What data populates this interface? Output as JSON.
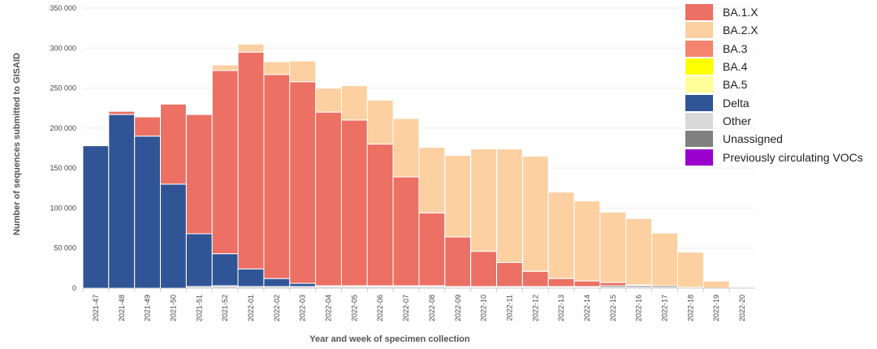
{
  "chart_data": {
    "type": "bar",
    "stacked": true,
    "xlabel": "Year and week of specimen collection",
    "ylabel": "Number of sequences submitted to GISAID",
    "ylim": [
      0,
      350000
    ],
    "yticks": [
      0,
      50000,
      100000,
      150000,
      200000,
      250000,
      300000,
      350000
    ],
    "ytick_labels": [
      "0",
      "50 000",
      "100 000",
      "150 000",
      "200 000",
      "250 000",
      "300 000",
      "350 000"
    ],
    "legend_position": "right",
    "categories": [
      "2021-47",
      "2021-48",
      "2021-49",
      "2021-50",
      "2021-51",
      "2021-52",
      "2022-01",
      "2022-02",
      "2022-03",
      "2022-04",
      "2022-05",
      "2022-06",
      "2022-07",
      "2022-08",
      "2022-09",
      "2022-10",
      "2022-11",
      "2022-12",
      "2022-13",
      "2022-14",
      "2022-15",
      "2022-16",
      "2022-17",
      "2022-18",
      "2022-19",
      "2022-20"
    ],
    "series": [
      {
        "name": "Other",
        "color": "#d9d9d9",
        "values": [
          0,
          0,
          0,
          0,
          2000,
          3000,
          2000,
          2000,
          2000,
          2000,
          2000,
          2000,
          2000,
          2000,
          1000,
          1000,
          1000,
          1000,
          1000,
          1000,
          1000,
          1000,
          1000,
          1000,
          0,
          0
        ]
      },
      {
        "name": "Unassigned",
        "color": "#808080",
        "values": [
          0,
          0,
          0,
          0,
          0,
          0,
          0,
          0,
          0,
          1000,
          1000,
          1000,
          1000,
          1000,
          1000,
          1000,
          1000,
          1000,
          1000,
          1000,
          2000,
          2000,
          2000,
          0,
          0,
          0
        ]
      },
      {
        "name": "Previously circulating VOCs",
        "color": "#9900cc",
        "values": [
          0,
          0,
          0,
          0,
          0,
          0,
          0,
          0,
          0,
          0,
          0,
          0,
          0,
          0,
          0,
          0,
          0,
          0,
          0,
          0,
          0,
          0,
          0,
          0,
          0,
          0
        ]
      },
      {
        "name": "Delta",
        "color": "#2f5597",
        "values": [
          178000,
          217000,
          190000,
          130000,
          66000,
          40000,
          22000,
          10000,
          4000,
          0,
          0,
          0,
          0,
          0,
          0,
          0,
          0,
          0,
          0,
          0,
          0,
          0,
          0,
          0,
          0,
          0
        ]
      },
      {
        "name": "BA.1.X",
        "color": "#ec7064",
        "values": [
          1000,
          4000,
          24000,
          100000,
          149000,
          229000,
          271000,
          255000,
          252000,
          217000,
          207000,
          177000,
          136000,
          91000,
          62000,
          44000,
          30000,
          19000,
          10000,
          7000,
          4000,
          1000,
          0,
          0,
          0,
          0
        ]
      },
      {
        "name": "BA.3",
        "color": "#f4846e",
        "values": [
          0,
          0,
          0,
          0,
          0,
          0,
          0,
          0,
          0,
          0,
          0,
          0,
          0,
          0,
          0,
          0,
          0,
          0,
          0,
          0,
          0,
          0,
          0,
          0,
          0,
          0
        ]
      },
      {
        "name": "BA.4",
        "color": "#ffff00",
        "values": [
          0,
          0,
          0,
          0,
          0,
          0,
          0,
          0,
          0,
          0,
          0,
          0,
          0,
          0,
          0,
          0,
          0,
          0,
          0,
          0,
          0,
          0,
          0,
          0,
          0,
          0
        ]
      },
      {
        "name": "BA.5",
        "color": "#ffff99",
        "values": [
          0,
          0,
          0,
          0,
          0,
          0,
          0,
          0,
          0,
          0,
          0,
          0,
          0,
          0,
          0,
          0,
          0,
          0,
          0,
          0,
          0,
          0,
          0,
          0,
          0,
          0
        ]
      },
      {
        "name": "BA.2.X",
        "color": "#fdd0a2",
        "values": [
          0,
          0,
          0,
          0,
          0,
          7000,
          10000,
          16000,
          26000,
          30000,
          43000,
          55000,
          73000,
          82000,
          102000,
          128000,
          142000,
          144000,
          108000,
          100000,
          88000,
          83000,
          66000,
          44000,
          9000,
          1000
        ]
      }
    ],
    "legend": [
      {
        "label": "BA.1.X",
        "color": "#ec7064"
      },
      {
        "label": "BA.2.X",
        "color": "#fdd0a2"
      },
      {
        "label": "BA.3",
        "color": "#f4846e"
      },
      {
        "label": "BA.4",
        "color": "#ffff00"
      },
      {
        "label": "BA.5",
        "color": "#ffff99"
      },
      {
        "label": "Delta",
        "color": "#2f5597"
      },
      {
        "label": "Other",
        "color": "#d9d9d9"
      },
      {
        "label": "Unassigned",
        "color": "#808080"
      },
      {
        "label": "Previously circulating VOCs",
        "color": "#9900cc"
      }
    ]
  }
}
